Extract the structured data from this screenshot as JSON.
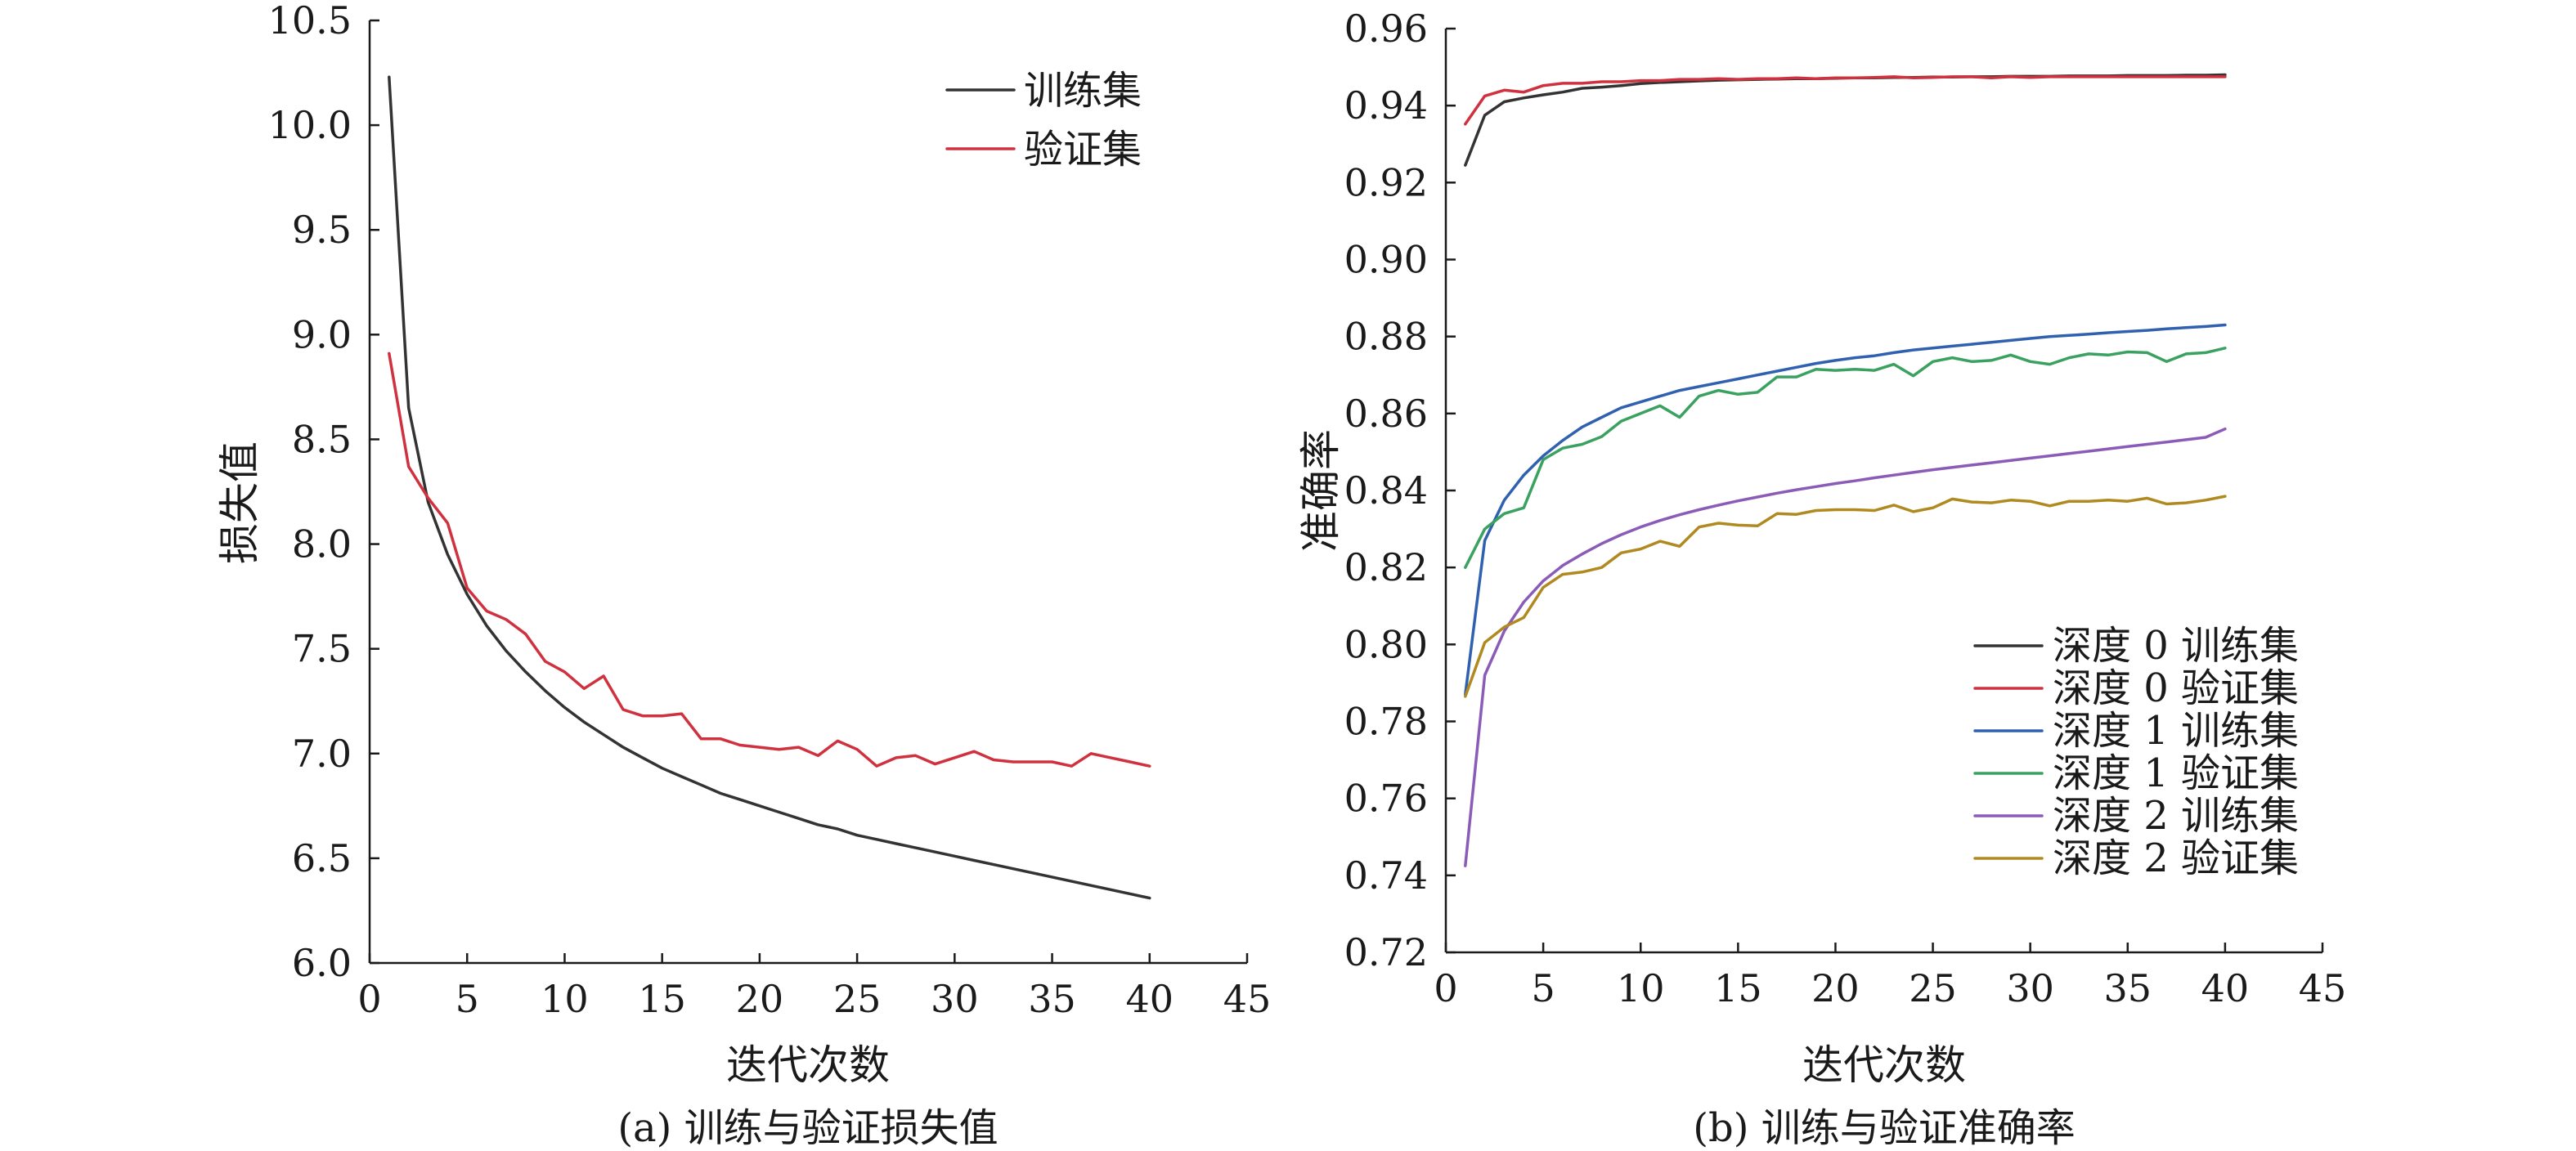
{
  "chart_data": [
    {
      "type": "line",
      "caption": "(a) 训练与验证损失值",
      "xlabel": "迭代次数",
      "ylabel": "损失值",
      "xlim": [
        0,
        45
      ],
      "ylim": [
        6.0,
        10.5
      ],
      "xticks": [
        "0",
        "5",
        "10",
        "15",
        "20",
        "25",
        "30",
        "35",
        "40",
        "45"
      ],
      "yticks": [
        "6.0",
        "6.5",
        "7.0",
        "7.5",
        "8.0",
        "8.5",
        "9.0",
        "9.5",
        "10.0",
        "10.5"
      ],
      "legend_position": "top-right",
      "grid": false,
      "x": [
        1,
        2,
        3,
        4,
        5,
        6,
        7,
        8,
        9,
        10,
        11,
        12,
        13,
        14,
        15,
        16,
        17,
        18,
        19,
        20,
        21,
        22,
        23,
        24,
        25,
        26,
        27,
        28,
        29,
        30,
        31,
        32,
        33,
        34,
        35,
        36,
        37,
        38,
        39,
        40
      ],
      "series": [
        {
          "name": "训练集",
          "color": "#333333",
          "values": [
            10.23,
            8.65,
            8.2,
            7.95,
            7.76,
            7.61,
            7.49,
            7.39,
            7.3,
            7.22,
            7.15,
            7.09,
            7.03,
            6.98,
            6.93,
            6.89,
            6.85,
            6.81,
            6.78,
            6.75,
            6.72,
            6.69,
            6.66,
            6.64,
            6.61,
            6.59,
            6.57,
            6.55,
            6.53,
            6.51,
            6.49,
            6.47,
            6.45,
            6.43,
            6.41,
            6.39,
            6.37,
            6.35,
            6.33,
            6.31
          ]
        },
        {
          "name": "验证集",
          "color": "#d0313f",
          "values": [
            8.91,
            8.37,
            8.22,
            8.1,
            7.79,
            7.68,
            7.64,
            7.57,
            7.44,
            7.39,
            7.31,
            7.37,
            7.21,
            7.18,
            7.18,
            7.19,
            7.07,
            7.07,
            7.04,
            7.03,
            7.02,
            7.03,
            6.99,
            7.06,
            7.02,
            6.94,
            6.98,
            6.99,
            6.95,
            6.98,
            7.01,
            6.97,
            6.96,
            6.96,
            6.96,
            6.94,
            7.0,
            6.98,
            6.96,
            6.94
          ]
        }
      ]
    },
    {
      "type": "line",
      "caption": "(b) 训练与验证准确率",
      "xlabel": "迭代次数",
      "ylabel": "准确率",
      "xlim": [
        0,
        45
      ],
      "ylim": [
        0.72,
        0.96
      ],
      "xticks": [
        "0",
        "5",
        "10",
        "15",
        "20",
        "25",
        "30",
        "35",
        "40",
        "45"
      ],
      "yticks": [
        "0.72",
        "0.74",
        "0.76",
        "0.78",
        "0.80",
        "0.82",
        "0.84",
        "0.86",
        "0.88",
        "0.90",
        "0.92",
        "0.94",
        "0.96"
      ],
      "legend_position": "bottom-right",
      "grid": false,
      "x": [
        1,
        2,
        3,
        4,
        5,
        6,
        7,
        8,
        9,
        10,
        11,
        12,
        13,
        14,
        15,
        16,
        17,
        18,
        19,
        20,
        21,
        22,
        23,
        24,
        25,
        26,
        27,
        28,
        29,
        30,
        31,
        32,
        33,
        34,
        35,
        36,
        37,
        38,
        39,
        40
      ],
      "series": [
        {
          "name": "深度 0 训练集",
          "color": "#333333",
          "values": [
            0.9245,
            0.9375,
            0.941,
            0.942,
            0.9428,
            0.9435,
            0.9445,
            0.9448,
            0.9452,
            0.9457,
            0.946,
            0.9462,
            0.9464,
            0.9466,
            0.9467,
            0.9468,
            0.9469,
            0.947,
            0.947,
            0.9471,
            0.9472,
            0.9472,
            0.9473,
            0.9473,
            0.9474,
            0.9474,
            0.9475,
            0.9475,
            0.9476,
            0.9476,
            0.9476,
            0.9477,
            0.9477,
            0.9477,
            0.9478,
            0.9478,
            0.9478,
            0.9479,
            0.9479,
            0.948
          ]
        },
        {
          "name": "深度 0 验证集",
          "color": "#d0313f",
          "values": [
            0.9352,
            0.9425,
            0.944,
            0.9435,
            0.9452,
            0.9458,
            0.9458,
            0.9462,
            0.9462,
            0.9465,
            0.9465,
            0.9468,
            0.9468,
            0.947,
            0.9468,
            0.947,
            0.947,
            0.9472,
            0.947,
            0.9472,
            0.9472,
            0.9473,
            0.9475,
            0.9472,
            0.9473,
            0.9475,
            0.9475,
            0.9472,
            0.9475,
            0.9473,
            0.9475,
            0.9475,
            0.9475,
            0.9475,
            0.9475,
            0.9475,
            0.9475,
            0.9475,
            0.9475,
            0.9475
          ]
        },
        {
          "name": "深度 1 训练集",
          "color": "#3060b0",
          "values": [
            0.787,
            0.827,
            0.8375,
            0.844,
            0.849,
            0.853,
            0.8565,
            0.859,
            0.8615,
            0.863,
            0.8645,
            0.866,
            0.867,
            0.868,
            0.869,
            0.87,
            0.871,
            0.872,
            0.873,
            0.8738,
            0.8745,
            0.875,
            0.8758,
            0.8765,
            0.877,
            0.8775,
            0.878,
            0.8785,
            0.879,
            0.8795,
            0.88,
            0.8803,
            0.8806,
            0.881,
            0.8813,
            0.8816,
            0.882,
            0.8823,
            0.8826,
            0.883
          ]
        },
        {
          "name": "深度 1 验证集",
          "color": "#3aa160",
          "values": [
            0.82,
            0.83,
            0.834,
            0.8355,
            0.848,
            0.851,
            0.852,
            0.854,
            0.858,
            0.86,
            0.862,
            0.859,
            0.8645,
            0.866,
            0.865,
            0.8655,
            0.8695,
            0.8695,
            0.8715,
            0.8712,
            0.8715,
            0.8712,
            0.8728,
            0.8698,
            0.8735,
            0.8745,
            0.8735,
            0.8738,
            0.8752,
            0.8735,
            0.8728,
            0.8745,
            0.8755,
            0.8752,
            0.876,
            0.8758,
            0.8735,
            0.8755,
            0.8758,
            0.877
          ]
        },
        {
          "name": "深度 2 训练集",
          "color": "#8a5cb8",
          "values": [
            0.7425,
            0.792,
            0.8035,
            0.811,
            0.8165,
            0.8205,
            0.8235,
            0.8262,
            0.8285,
            0.8305,
            0.8322,
            0.8337,
            0.835,
            0.8362,
            0.8373,
            0.8383,
            0.8393,
            0.8402,
            0.841,
            0.8418,
            0.8425,
            0.8433,
            0.844,
            0.8447,
            0.8454,
            0.846,
            0.8466,
            0.8472,
            0.8478,
            0.8484,
            0.849,
            0.8496,
            0.8502,
            0.8508,
            0.8514,
            0.852,
            0.8526,
            0.8532,
            0.8538,
            0.856
          ]
        },
        {
          "name": "深度 2 验证集",
          "color": "#b08a20",
          "values": [
            0.7865,
            0.8005,
            0.8045,
            0.807,
            0.8148,
            0.8182,
            0.8188,
            0.82,
            0.8238,
            0.8248,
            0.8268,
            0.8255,
            0.8305,
            0.8315,
            0.831,
            0.8308,
            0.834,
            0.8338,
            0.8348,
            0.835,
            0.835,
            0.8348,
            0.8362,
            0.8345,
            0.8355,
            0.8378,
            0.837,
            0.8368,
            0.8375,
            0.8372,
            0.836,
            0.8372,
            0.8372,
            0.8375,
            0.8372,
            0.838,
            0.8365,
            0.8368,
            0.8375,
            0.8385
          ]
        }
      ]
    }
  ]
}
